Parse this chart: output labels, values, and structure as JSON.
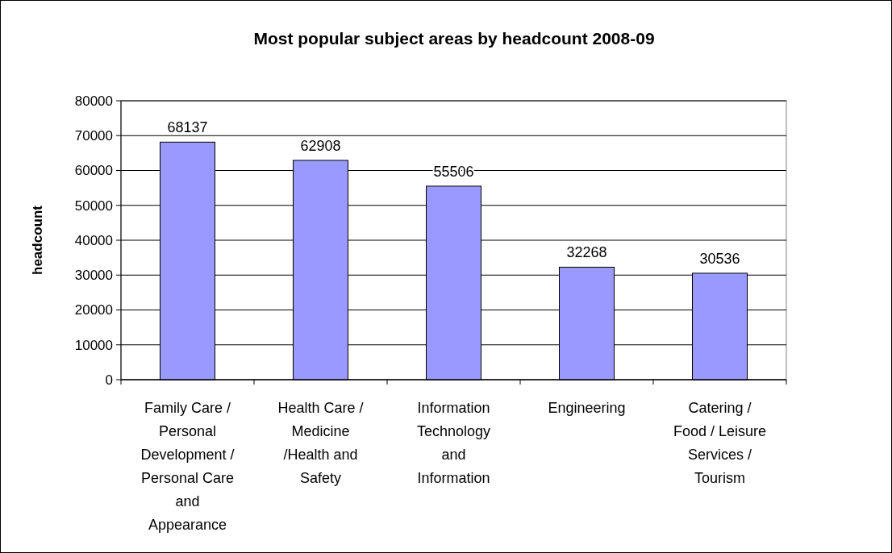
{
  "chart_data": {
    "type": "bar",
    "title": "Most popular subject areas by headcount 2008-09",
    "ylabel": "headcount",
    "categories": [
      "Family Care / Personal Development / Personal Care and Appearance",
      "Health Care / Medicine /Health and Safety",
      "Information Technology and Information",
      "Engineering",
      "Catering / Food / Leisure Services / Tourism"
    ],
    "values": [
      68137,
      62908,
      55506,
      32268,
      30536
    ],
    "color": "#9999ff",
    "ylim": [
      0,
      80000
    ],
    "yticks": [
      0,
      10000,
      20000,
      30000,
      40000,
      50000,
      60000,
      70000,
      80000
    ],
    "grid": "y",
    "data_labels": true
  }
}
